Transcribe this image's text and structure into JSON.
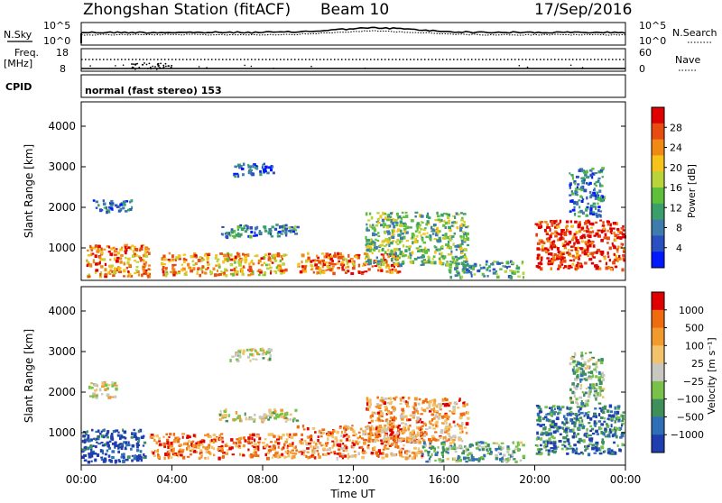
{
  "header": {
    "station": "Zhongshan Station (fitACF)",
    "beam": "Beam 10",
    "date": "17/Sep/2016"
  },
  "top_panels": {
    "nsky_label": "N.Sky",
    "nsky_tick_top": "10^5",
    "nsky_tick_bottom": "10^0",
    "nsearch_label": "N.Search",
    "nsearch_tick_top": "10^5",
    "nsearch_tick_bottom": "10^0",
    "freq_label": "Freq.",
    "freq_unit": "[MHz]",
    "freq_tick_top": "18",
    "freq_tick_bottom": "8",
    "nave_label": "Nave",
    "nave_tick_top": "60",
    "nave_tick_bottom": "0",
    "cpid_label": "CPID",
    "cpid_text": "normal (fast stereo) 153"
  },
  "chart_data": [
    {
      "type": "heatmap",
      "name": "power",
      "ylabel": "Slant Range [km]",
      "yticks": [
        "4000",
        "3000",
        "2000",
        "1000"
      ],
      "ylim": [
        200,
        4600
      ],
      "colorbar_label": "Power [dB]",
      "colorbar_ticks": [
        "28",
        "24",
        "20",
        "16",
        "12",
        "8",
        "4"
      ],
      "colors": [
        "#0019ff",
        "#2a4fc0",
        "#3f7cae",
        "#3a9f6a",
        "#5dbf3a",
        "#b8d43a",
        "#f6c31a",
        "#f08a14",
        "#e84c10",
        "#e00000"
      ],
      "regions": [
        {
          "t": [
            0.2,
            3.0
          ],
          "r": [
            300,
            1100
          ],
          "level": 0.75
        },
        {
          "t": [
            0.5,
            2.2
          ],
          "r": [
            1900,
            2200
          ],
          "level": 0.2
        },
        {
          "t": [
            3.5,
            9.0
          ],
          "r": [
            350,
            900
          ],
          "level": 0.7
        },
        {
          "t": [
            6.0,
            9.5
          ],
          "r": [
            1300,
            1600
          ],
          "level": 0.3
        },
        {
          "t": [
            9.5,
            14.0
          ],
          "r": [
            400,
            900
          ],
          "level": 0.8
        },
        {
          "t": [
            12.5,
            17.0
          ],
          "r": [
            600,
            1900
          ],
          "level": 0.45
        },
        {
          "t": [
            16.0,
            19.5
          ],
          "r": [
            300,
            700
          ],
          "level": 0.35
        },
        {
          "t": [
            20.0,
            23.9
          ],
          "r": [
            500,
            1700
          ],
          "level": 0.9
        },
        {
          "t": [
            21.5,
            23.0
          ],
          "r": [
            1800,
            3000
          ],
          "level": 0.25
        },
        {
          "t": [
            6.5,
            8.5
          ],
          "r": [
            2800,
            3100
          ],
          "level": 0.15
        }
      ]
    },
    {
      "type": "heatmap",
      "name": "velocity",
      "ylabel": "Slant Range [km]",
      "yticks": [
        "4000",
        "3000",
        "2000",
        "1000"
      ],
      "ylim": [
        200,
        4600
      ],
      "colorbar_label": "Velocity [m s⁻¹]",
      "colorbar_ticks": [
        "1000",
        "500",
        "100",
        "25",
        "−25",
        "−100",
        "−500",
        "−1000"
      ],
      "colors": [
        "#1f3fae",
        "#2f6fb8",
        "#3e8f5a",
        "#79c24a",
        "#c8c8c0",
        "#f2c36a",
        "#f29a2e",
        "#f06a10",
        "#e00000"
      ],
      "regions": [
        {
          "t": [
            0.0,
            2.8
          ],
          "r": [
            300,
            1100
          ],
          "level": 0.05
        },
        {
          "t": [
            0.3,
            1.5
          ],
          "r": [
            1900,
            2300
          ],
          "level": 0.5
        },
        {
          "t": [
            3.0,
            9.5
          ],
          "r": [
            400,
            1000
          ],
          "level": 0.8
        },
        {
          "t": [
            6.0,
            9.5
          ],
          "r": [
            1300,
            1600
          ],
          "level": 0.5
        },
        {
          "t": [
            9.5,
            15.0
          ],
          "r": [
            400,
            1200
          ],
          "level": 0.75
        },
        {
          "t": [
            12.5,
            17.0
          ],
          "r": [
            800,
            1900
          ],
          "level": 0.7
        },
        {
          "t": [
            15.0,
            19.5
          ],
          "r": [
            300,
            800
          ],
          "level": 0.35
        },
        {
          "t": [
            20.0,
            23.9
          ],
          "r": [
            500,
            1700
          ],
          "level": 0.2
        },
        {
          "t": [
            21.5,
            23.0
          ],
          "r": [
            1700,
            3000
          ],
          "level": 0.4
        },
        {
          "t": [
            6.5,
            8.5
          ],
          "r": [
            2800,
            3100
          ],
          "level": 0.5
        }
      ]
    }
  ],
  "time_axis": {
    "ticks": [
      "00:00",
      "04:00",
      "08:00",
      "12:00",
      "16:00",
      "20:00",
      "00:00"
    ],
    "xlabel": "Time UT"
  }
}
